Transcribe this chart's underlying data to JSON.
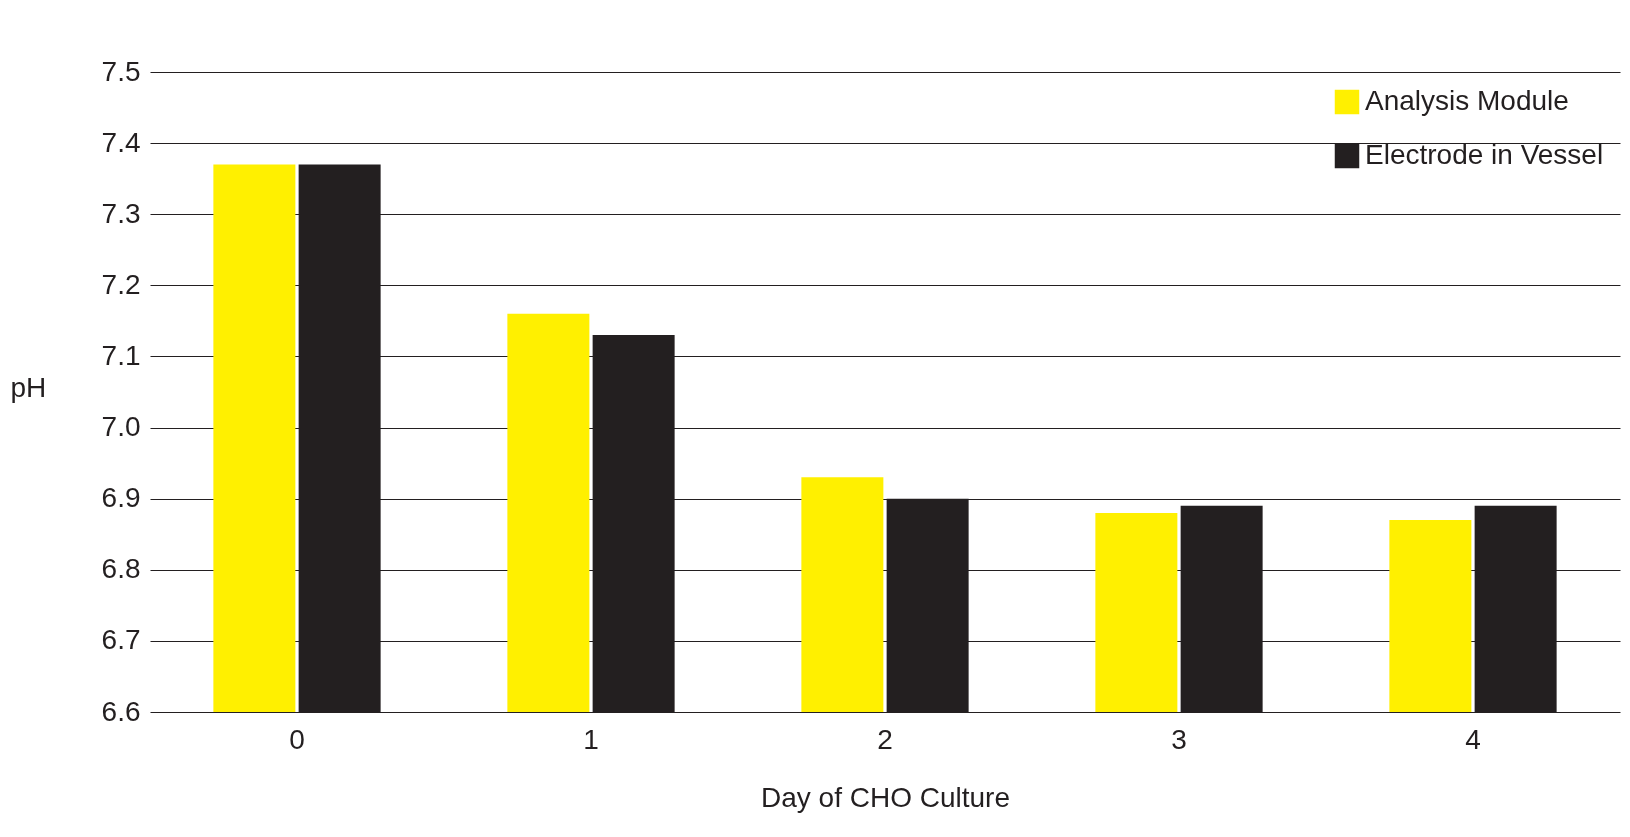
{
  "chart_data": {
    "type": "bar",
    "xlabel": "Day of CHO Culture",
    "ylabel": "pH",
    "categories": [
      "0",
      "1",
      "2",
      "3",
      "4"
    ],
    "series": [
      {
        "name": "Analysis Module",
        "color": "#fff000",
        "values": [
          7.37,
          7.16,
          6.93,
          6.88,
          6.87
        ]
      },
      {
        "name": "Electrode in Vessel",
        "color": "#231f20",
        "values": [
          7.37,
          7.13,
          6.9,
          6.89,
          6.89
        ]
      }
    ],
    "ylim": [
      6.6,
      7.5
    ],
    "yticks": [
      6.6,
      6.7,
      6.8,
      6.9,
      {
        "value": 7,
        "label": "7.0"
      },
      7.1,
      7.2,
      7.3,
      7.4,
      7.5
    ],
    "grid": "y",
    "legend": "top right"
  }
}
